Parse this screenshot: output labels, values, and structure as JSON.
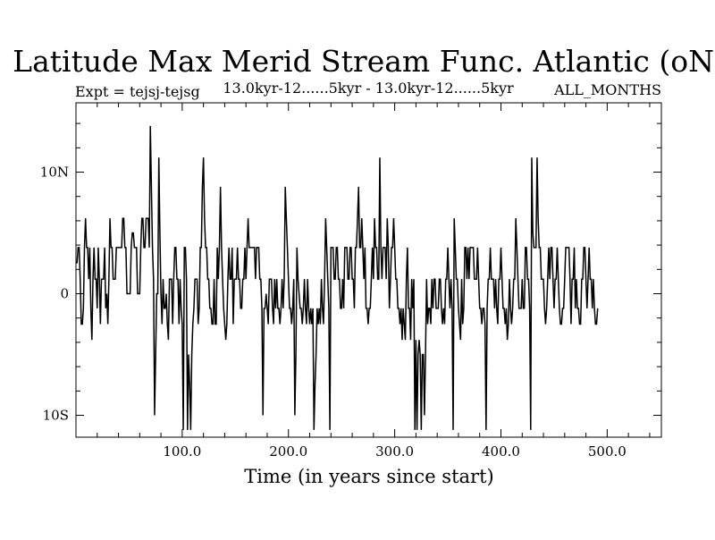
{
  "chart_data": {
    "type": "line",
    "title": "Latitude Max Merid Stream Func. Atlantic (oN)",
    "experiment_label": "Expt = tejsj-tejsg",
    "period_label": "13.0kyr-12......5kyr - 13.0kyr-12......5kyr",
    "months_label": "ALL_MONTHS",
    "xlabel": "Time (in years since start)",
    "ylabel": "",
    "xlim": [
      0,
      551
    ],
    "ylim": [
      -11.8,
      15.7
    ],
    "x_ticks": [
      {
        "value": 100,
        "label": "100.0"
      },
      {
        "value": 200,
        "label": "200.0"
      },
      {
        "value": 300,
        "label": "300.0"
      },
      {
        "value": 400,
        "label": "400.0"
      },
      {
        "value": 500,
        "label": "500.0"
      }
    ],
    "y_ticks": [
      {
        "value": 10,
        "label": "10N"
      },
      {
        "value": 0,
        "label": "0"
      },
      {
        "value": -10,
        "label": "10S"
      }
    ],
    "grid": false,
    "series": [
      {
        "name": "Expt = tejsj-tejsg",
        "step": 1,
        "x_start": 1,
        "values": [
          2.5,
          3.8,
          3.8,
          1.2,
          -2.5,
          -2.5,
          -1.2,
          3.8,
          6.2,
          3.8,
          3.8,
          1.2,
          3.8,
          -1.2,
          -3.8,
          1.2,
          3.8,
          1.2,
          1.2,
          -1.2,
          3.8,
          1.2,
          -2.5,
          1.2,
          1.2,
          1.2,
          3.8,
          -1.2,
          0.0,
          -2.5,
          1.2,
          6.2,
          3.8,
          3.8,
          1.2,
          1.2,
          1.2,
          3.8,
          3.8,
          3.8,
          3.8,
          3.8,
          3.8,
          6.2,
          6.2,
          3.8,
          3.8,
          0.0,
          0.0,
          0.0,
          0.0,
          3.8,
          5.0,
          5.0,
          3.8,
          3.8,
          3.8,
          0.0,
          0.0,
          0.0,
          3.8,
          6.2,
          6.2,
          3.8,
          3.8,
          6.2,
          6.2,
          6.2,
          3.8,
          13.8,
          8.8,
          3.8,
          1.2,
          -10.0,
          -5.0,
          0.0,
          0.0,
          11.2,
          5.0,
          0.0,
          -2.5,
          1.2,
          -1.2,
          -1.2,
          0.0,
          -2.5,
          -3.8,
          1.2,
          1.2,
          1.2,
          -2.5,
          1.2,
          3.8,
          3.8,
          1.2,
          1.2,
          -2.5,
          1.2,
          -1.2,
          -2.5,
          -11.2,
          3.8,
          3.8,
          1.2,
          -11.2,
          -5.0,
          -7.5,
          -11.2,
          -5.0,
          -2.5,
          -1.2,
          1.2,
          1.2,
          1.2,
          -2.5,
          -1.2,
          3.8,
          3.8,
          8.8,
          11.2,
          6.2,
          3.8,
          3.8,
          1.2,
          1.2,
          -1.2,
          -1.2,
          -2.5,
          -2.5,
          1.2,
          -2.5,
          -2.5,
          3.8,
          1.2,
          3.8,
          8.8,
          3.8,
          1.2,
          -1.2,
          -2.5,
          -3.8,
          -2.5,
          1.2,
          3.8,
          1.2,
          1.2,
          3.8,
          -2.5,
          1.2,
          1.2,
          1.2,
          3.8,
          1.2,
          1.2,
          -1.2,
          -1.2,
          1.2,
          1.2,
          3.8,
          1.2,
          3.8,
          6.2,
          3.8,
          3.8,
          3.8,
          3.8,
          3.8,
          3.8,
          1.2,
          3.8,
          3.8,
          3.8,
          1.2,
          1.2,
          -1.2,
          -10.0,
          -1.2,
          -1.2,
          0.0,
          -1.2,
          -2.5,
          1.2,
          1.2,
          1.2,
          -1.2,
          -2.5,
          1.2,
          -1.2,
          1.2,
          -1.2,
          -1.2,
          -2.5,
          -1.2,
          1.2,
          -1.2,
          1.2,
          8.8,
          6.2,
          3.8,
          1.2,
          -1.2,
          -1.2,
          -2.5,
          -1.2,
          1.2,
          -10.0,
          -5.0,
          3.8,
          1.2,
          0.0,
          -1.2,
          -1.2,
          -2.5,
          -1.2,
          1.2,
          -1.2,
          -2.5,
          1.2,
          -1.2,
          -2.5,
          -1.2,
          -2.5,
          -1.2,
          -11.2,
          -7.5,
          -5.0,
          -1.2,
          -2.5,
          -1.2,
          -2.5,
          1.2,
          -1.2,
          -2.5,
          1.2,
          6.2,
          3.8,
          1.2,
          -1.2,
          -11.2,
          3.8,
          3.8,
          3.8,
          1.2,
          1.2,
          3.8,
          3.8,
          1.2,
          1.2,
          -1.2,
          -1.2,
          1.2,
          -1.2,
          3.8,
          3.8,
          3.8,
          1.2,
          1.2,
          3.8,
          3.8,
          1.2,
          1.2,
          -1.2,
          3.8,
          3.8,
          6.2,
          8.8,
          3.8,
          3.8,
          6.2,
          3.8,
          1.2,
          3.8,
          -1.2,
          -1.2,
          -2.5,
          -1.2,
          -1.2,
          1.2,
          3.8,
          1.2,
          6.2,
          3.8,
          3.8,
          1.2,
          1.2,
          11.2,
          3.8,
          1.2,
          3.8,
          3.8,
          3.8,
          1.2,
          6.2,
          3.8,
          -1.2,
          1.2,
          3.8,
          3.8,
          6.2,
          3.8,
          1.2,
          1.2,
          -1.2,
          -1.2,
          -2.5,
          -1.2,
          -3.8,
          -1.2,
          -2.5,
          -3.8,
          1.2,
          3.8,
          -1.2,
          -1.2,
          -3.8,
          1.2,
          -1.2,
          1.2,
          -11.2,
          -3.8,
          -11.2,
          -5.0,
          -3.8,
          -5.0,
          -11.2,
          -5.0,
          -5.0,
          -10.0,
          -5.0,
          1.2,
          -2.5,
          -1.2,
          -1.2,
          -2.5,
          1.2,
          -1.2,
          1.2,
          1.2,
          -1.2,
          -1.2,
          -1.2,
          1.2,
          1.2,
          -1.2,
          -2.5,
          -1.2,
          -2.5,
          1.2,
          1.2,
          3.8,
          1.2,
          -1.2,
          1.2,
          -1.2,
          -11.2,
          6.2,
          3.8,
          1.2,
          1.2,
          -1.2,
          -2.5,
          -3.8,
          1.2,
          -2.5,
          -1.2,
          3.8,
          3.8,
          1.2,
          3.8,
          1.2,
          3.8,
          3.8,
          3.8,
          3.8,
          1.2,
          1.2,
          1.2,
          3.8,
          1.2,
          -1.2,
          -1.2,
          -2.5,
          -1.2,
          -1.2,
          -2.5,
          -11.2,
          -1.2,
          1.2,
          1.2,
          3.8,
          1.2,
          1.2,
          1.2,
          -1.2,
          1.2,
          -1.2,
          -2.5,
          1.2,
          1.2,
          3.8,
          1.2,
          -1.2,
          -1.2,
          -2.5,
          -1.2,
          -3.8,
          -2.5,
          1.2,
          -1.2,
          -2.5,
          -1.2,
          1.2,
          1.2,
          6.2,
          3.8,
          1.2,
          -1.2,
          -1.2,
          -1.2,
          1.2,
          -1.2,
          -1.2,
          3.8,
          3.8,
          1.2,
          1.2,
          -1.2,
          -11.2,
          11.2,
          5.0,
          3.8,
          3.8,
          3.8,
          11.2,
          6.2,
          3.8,
          3.8,
          1.2,
          1.2,
          1.2,
          -1.2,
          -2.5,
          -1.2,
          1.2,
          3.8,
          1.2,
          3.8,
          3.8,
          1.2,
          -1.2,
          1.2,
          1.2,
          3.8,
          1.2,
          -1.2,
          -2.5,
          -2.5,
          -1.2,
          -1.2,
          1.2,
          3.8,
          3.8,
          3.8,
          3.8,
          1.2,
          -2.5,
          1.2,
          1.2,
          3.8,
          -1.2,
          1.2,
          -1.2,
          -1.2,
          -2.5,
          -2.5,
          1.2,
          1.2,
          3.8,
          3.8,
          1.2,
          -1.2,
          1.2,
          3.8,
          1.2,
          1.2,
          -1.2,
          1.2,
          -1.2,
          -2.5,
          -2.5,
          -1.2
        ]
      }
    ]
  }
}
